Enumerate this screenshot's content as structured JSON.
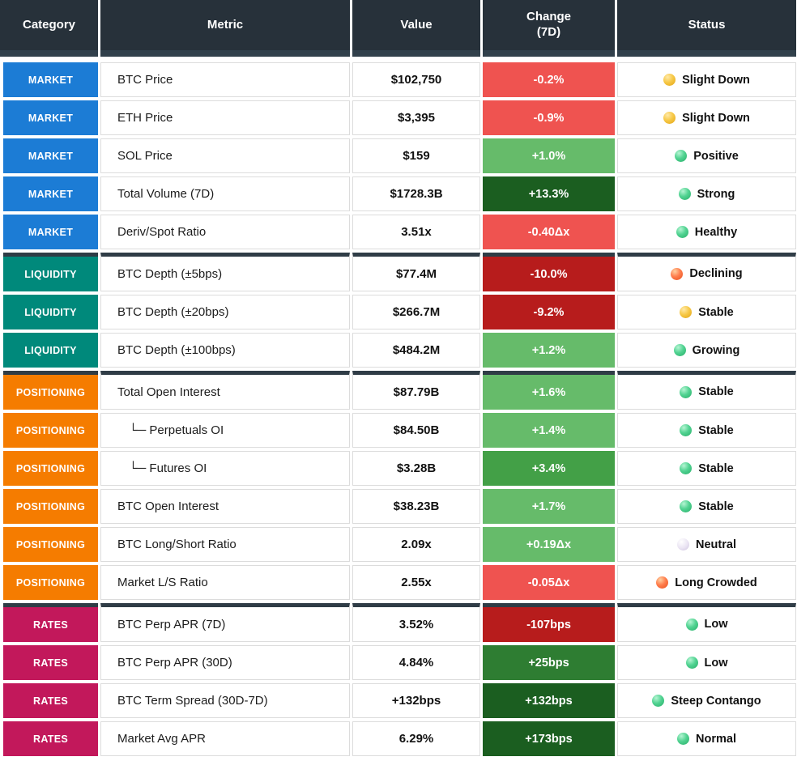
{
  "colors": {
    "category": {
      "MARKET": "#1c7cd5",
      "LIQUIDITY": "#00897b",
      "POSITIONING": "#f57c00",
      "RATES": "#c2185b"
    },
    "change": {
      "red_light": "#ef5350",
      "red_dark": "#b71c1c",
      "green_light": "#66bb6a",
      "green_mid": "#43a047",
      "green_mid_dark": "#2e7d32",
      "green_dark": "#1b5e20"
    },
    "header_bg": "#27313a",
    "section_divider": "#2f3c46"
  },
  "chart_data": {
    "type": "table",
    "header_columns": [
      {
        "label": "Category",
        "sub": ""
      },
      {
        "label": "Metric",
        "sub": ""
      },
      {
        "label": "Value",
        "sub": ""
      },
      {
        "label": "Change",
        "sub": "(7D)"
      },
      {
        "label": "Status",
        "sub": ""
      }
    ],
    "rows": [
      {
        "category": "MARKET",
        "metric": "BTC Price",
        "value": "$102,750",
        "change": "-0.2%",
        "change_key": "red_light",
        "dot": "yellow",
        "status": "Slight Down",
        "section_start": false,
        "indent": false
      },
      {
        "category": "MARKET",
        "metric": "ETH Price",
        "value": "$3,395",
        "change": "-0.9%",
        "change_key": "red_light",
        "dot": "yellow",
        "status": "Slight Down",
        "section_start": false,
        "indent": false
      },
      {
        "category": "MARKET",
        "metric": "SOL Price",
        "value": "$159",
        "change": "+1.0%",
        "change_key": "green_light",
        "dot": "green",
        "status": "Positive",
        "section_start": false,
        "indent": false
      },
      {
        "category": "MARKET",
        "metric": "Total Volume (7D)",
        "value": "$1728.3B",
        "change": "+13.3%",
        "change_key": "green_dark",
        "dot": "green",
        "status": "Strong",
        "section_start": false,
        "indent": false
      },
      {
        "category": "MARKET",
        "metric": "Deriv/Spot Ratio",
        "value": "3.51x",
        "change": "-0.40Δx",
        "change_key": "red_light",
        "dot": "green",
        "status": "Healthy",
        "section_start": false,
        "indent": false
      },
      {
        "category": "LIQUIDITY",
        "metric": "BTC Depth (±5bps)",
        "value": "$77.4M",
        "change": "-10.0%",
        "change_key": "red_dark",
        "dot": "orange",
        "status": "Declining",
        "section_start": true,
        "indent": false
      },
      {
        "category": "LIQUIDITY",
        "metric": "BTC Depth (±20bps)",
        "value": "$266.7M",
        "change": "-9.2%",
        "change_key": "red_dark",
        "dot": "yellow",
        "status": "Stable",
        "section_start": false,
        "indent": false
      },
      {
        "category": "LIQUIDITY",
        "metric": "BTC Depth (±100bps)",
        "value": "$484.2M",
        "change": "+1.2%",
        "change_key": "green_light",
        "dot": "green",
        "status": "Growing",
        "section_start": false,
        "indent": false
      },
      {
        "category": "POSITIONING",
        "metric": "Total Open Interest",
        "value": "$87.79B",
        "change": "+1.6%",
        "change_key": "green_light",
        "dot": "green",
        "status": "Stable",
        "section_start": true,
        "indent": false
      },
      {
        "category": "POSITIONING",
        "metric": "└─ Perpetuals OI",
        "value": "$84.50B",
        "change": "+1.4%",
        "change_key": "green_light",
        "dot": "green",
        "status": "Stable",
        "section_start": false,
        "indent": true
      },
      {
        "category": "POSITIONING",
        "metric": "└─ Futures OI",
        "value": "$3.28B",
        "change": "+3.4%",
        "change_key": "green_mid",
        "dot": "green",
        "status": "Stable",
        "section_start": false,
        "indent": true
      },
      {
        "category": "POSITIONING",
        "metric": "BTC Open Interest",
        "value": "$38.23B",
        "change": "+1.7%",
        "change_key": "green_light",
        "dot": "green",
        "status": "Stable",
        "section_start": false,
        "indent": false
      },
      {
        "category": "POSITIONING",
        "metric": "BTC Long/Short Ratio",
        "value": "2.09x",
        "change": "+0.19Δx",
        "change_key": "green_light",
        "dot": "neutral",
        "status": "Neutral",
        "section_start": false,
        "indent": false
      },
      {
        "category": "POSITIONING",
        "metric": "Market L/S Ratio",
        "value": "2.55x",
        "change": "-0.05Δx",
        "change_key": "red_light",
        "dot": "orange",
        "status": "Long Crowded",
        "section_start": false,
        "indent": false
      },
      {
        "category": "RATES",
        "metric": "BTC Perp APR (7D)",
        "value": "3.52%",
        "change": "-107bps",
        "change_key": "red_dark",
        "dot": "green",
        "status": "Low",
        "section_start": true,
        "indent": false
      },
      {
        "category": "RATES",
        "metric": "BTC Perp APR (30D)",
        "value": "4.84%",
        "change": "+25bps",
        "change_key": "green_mid_dark",
        "dot": "green",
        "status": "Low",
        "section_start": false,
        "indent": false
      },
      {
        "category": "RATES",
        "metric": "BTC Term Spread (30D-7D)",
        "value": "+132bps",
        "change": "+132bps",
        "change_key": "green_dark",
        "dot": "green",
        "status": "Steep Contango",
        "section_start": false,
        "indent": false
      },
      {
        "category": "RATES",
        "metric": "Market Avg APR",
        "value": "6.29%",
        "change": "+173bps",
        "change_key": "green_dark",
        "dot": "green",
        "status": "Normal",
        "section_start": false,
        "indent": false
      }
    ]
  }
}
